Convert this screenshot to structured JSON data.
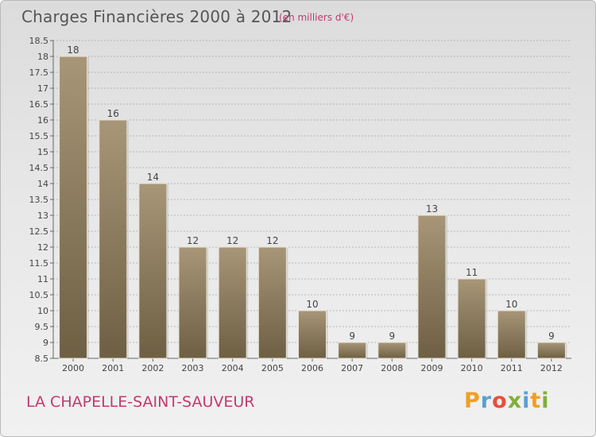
{
  "header": {
    "title": "Charges Financières 2000 à 2012",
    "subtitle": "(en milliers d'€)"
  },
  "footer": {
    "place": "LA CHAPELLE-SAINT-SAUVEUR",
    "logo": {
      "letters": [
        "P",
        "r",
        "o",
        "x",
        "i",
        "t",
        "i"
      ],
      "colors": [
        "#f0a020",
        "#5aa0d0",
        "#e94e3b",
        "#7fb03a",
        "#5aa0d0",
        "#f0a020",
        "#7fb03a"
      ]
    }
  },
  "colors": {
    "bar_top": "#a79677",
    "bar_bottom": "#6e5f44",
    "text": "#444444",
    "grid": "#a8a8a8"
  },
  "chart_data": {
    "type": "bar",
    "title": "Charges Financières 2000 à 2012",
    "subtitle": "(en milliers d'€)",
    "xlabel": "",
    "ylabel": "",
    "categories": [
      "2000",
      "2001",
      "2002",
      "2003",
      "2004",
      "2005",
      "2006",
      "2007",
      "2008",
      "2009",
      "2010",
      "2011",
      "2012"
    ],
    "values": [
      18,
      16,
      14,
      12,
      12,
      12,
      10,
      9,
      9,
      13,
      11,
      10,
      9
    ],
    "data_labels": [
      "18",
      "16",
      "14",
      "12",
      "12",
      "12",
      "10",
      "9",
      "9",
      "13",
      "11",
      "10",
      "9"
    ],
    "ylim": [
      8.5,
      18.5
    ],
    "yticks": [
      "8.5",
      "9",
      "9.5",
      "10",
      "10.5",
      "11",
      "11.5",
      "12",
      "12.5",
      "13",
      "13.5",
      "14",
      "14.5",
      "15",
      "15.5",
      "16",
      "16.5",
      "17",
      "17.5",
      "18",
      "18.5"
    ],
    "grid": true
  }
}
